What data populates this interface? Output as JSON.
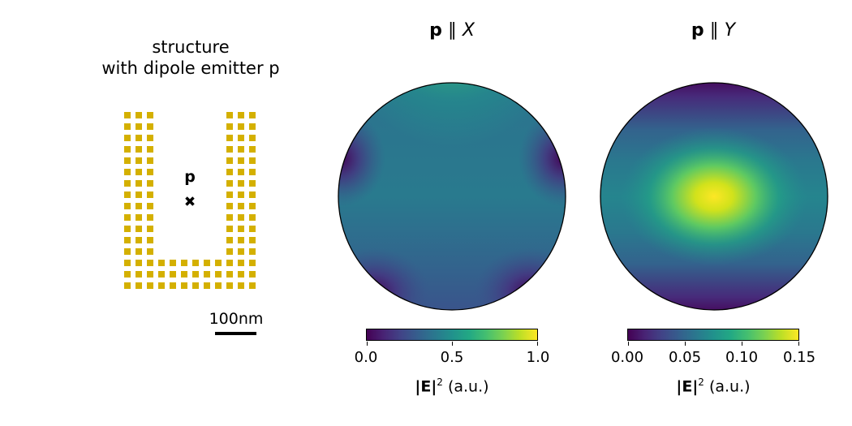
{
  "structure_panel": {
    "title_line1": "structure",
    "title_line2": "with dipole emitter p",
    "dipole_label": "p",
    "scale_bar_label": "100nm",
    "structure_color": "#d4b000"
  },
  "panel_x": {
    "title_bold": "p",
    "title_rest": " ∥ ",
    "title_axis": "X",
    "colorbar": {
      "ticks": [
        "0.0",
        "0.5",
        "1.0"
      ],
      "label_main": "|E|",
      "label_sup": "2",
      "label_unit": " (a.u.)"
    }
  },
  "panel_y": {
    "title_bold": "p",
    "title_rest": " ∥ ",
    "title_axis": "Y",
    "colorbar": {
      "ticks": [
        "0.00",
        "0.05",
        "0.10",
        "0.15"
      ],
      "label_main": "|E|",
      "label_sup": "2",
      "label_unit": " (a.u.)"
    }
  },
  "colormap": "viridis"
}
